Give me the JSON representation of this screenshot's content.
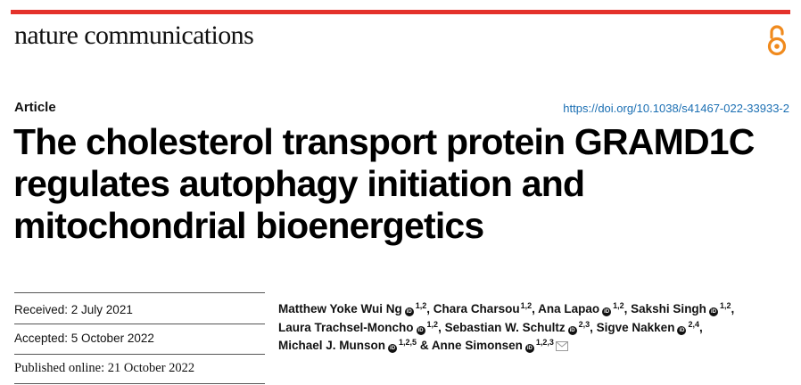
{
  "journal": "nature communications",
  "article_type": "Article",
  "doi": "https://doi.org/10.1038/s41467-022-33933-2",
  "title_lines": [
    "The cholesterol transport protein GRAMD1C",
    "regulates autophagy initiation and",
    "mitochondrial bioenergetics"
  ],
  "dates": {
    "received": "Received: 2 July 2021",
    "accepted": "Accepted: 5 October 2022",
    "published": "Published online: 21 October 2022"
  },
  "authors": {
    "a1_name": "Matthew Yoke Wui Ng",
    "a1_sup": "1,2",
    "sep1": ", ",
    "a2_name": "Chara Charsou",
    "a2_sup": "1,2",
    "sep2": ", ",
    "a3_name": "Ana Lapao",
    "a3_sup": "1,2",
    "sep3": ", ",
    "a4_name": "Sakshi Singh",
    "a4_sup": "1,2",
    "sep4": ",",
    "a5_name": "Laura Trachsel-Moncho",
    "a5_sup": "1,2",
    "sep5": ", ",
    "a6_name": "Sebastian W. Schultz",
    "a6_sup": "2,3",
    "sep6": ", ",
    "a7_name": "Sigve Nakken",
    "a7_sup": "2,4",
    "sep7": ",",
    "a8_name": "Michael J. Munson",
    "a8_sup": "1,2,5",
    "sep8": " & ",
    "a9_name": "Anne Simonsen",
    "a9_sup": "1,2,3"
  },
  "icons": {
    "open_access": "open-access-lock-icon",
    "orcid": "orcid-icon",
    "email": "envelope-icon"
  },
  "colors": {
    "accent_bar": "#e4322b",
    "open_access": "#f08a1d",
    "link": "#1b6fb3"
  }
}
